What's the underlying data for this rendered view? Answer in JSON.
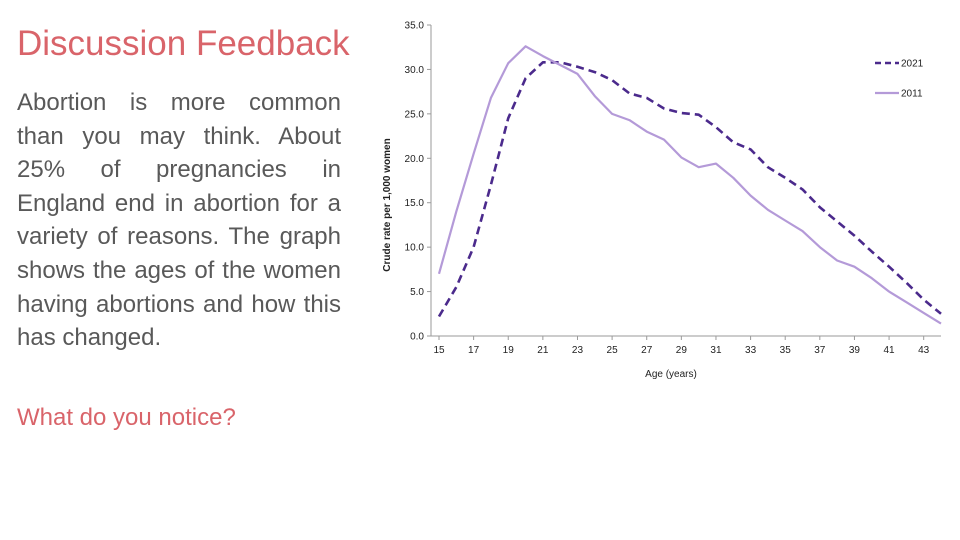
{
  "slide": {
    "title": "Discussion Feedback",
    "body": "Abortion is more common than you may think.  About 25% of pregnancies in England end in abortion for a variety of reasons.  The graph shows the ages of the women having abortions and how this has changed.",
    "question": "What do you notice?"
  },
  "colors": {
    "title": "#d9646a",
    "body_text": "#595959",
    "series_2021": "#4b2a8c",
    "series_2011": "#b49ad8"
  },
  "chart_data": {
    "type": "line",
    "title": "",
    "xlabel": "Age (years)",
    "ylabel": "Crude rate per 1,000 women",
    "xlim": [
      15,
      44
    ],
    "ylim": [
      0,
      35
    ],
    "x": [
      15,
      16,
      17,
      18,
      19,
      20,
      21,
      22,
      23,
      24,
      25,
      26,
      27,
      28,
      29,
      30,
      31,
      32,
      33,
      34,
      35,
      36,
      37,
      38,
      39,
      40,
      41,
      42,
      43,
      44
    ],
    "x_ticks": [
      "15",
      "17",
      "19",
      "21",
      "23",
      "25",
      "27",
      "29",
      "31",
      "33",
      "35",
      "37",
      "39",
      "41",
      "43"
    ],
    "y_ticks": [
      "0.0",
      "5.0",
      "10.0",
      "15.0",
      "20.0",
      "25.0",
      "30.0",
      "35.0"
    ],
    "legend_position": "top-right",
    "grid": false,
    "series": [
      {
        "name": "2021",
        "style": "dashed",
        "values": [
          2.2,
          5.5,
          10,
          17,
          24.5,
          29,
          30.8,
          30.8,
          30.3,
          29.7,
          28.8,
          27.3,
          26.8,
          25.6,
          25.1,
          24.9,
          23.5,
          21.8,
          21,
          19,
          17.8,
          16.5,
          14.5,
          12.9,
          11.3,
          9.5,
          7.8,
          6,
          4.1,
          2.5
        ]
      },
      {
        "name": "2011",
        "style": "solid",
        "values": [
          7,
          14,
          20.5,
          26.8,
          30.7,
          32.6,
          31.5,
          30.5,
          29.5,
          27,
          25,
          24.3,
          23,
          22.1,
          20.1,
          19,
          19.4,
          17.8,
          15.8,
          14.2,
          13,
          11.8,
          10,
          8.5,
          7.8,
          6.5,
          5,
          3.8,
          2.6,
          1.4
        ]
      }
    ]
  }
}
